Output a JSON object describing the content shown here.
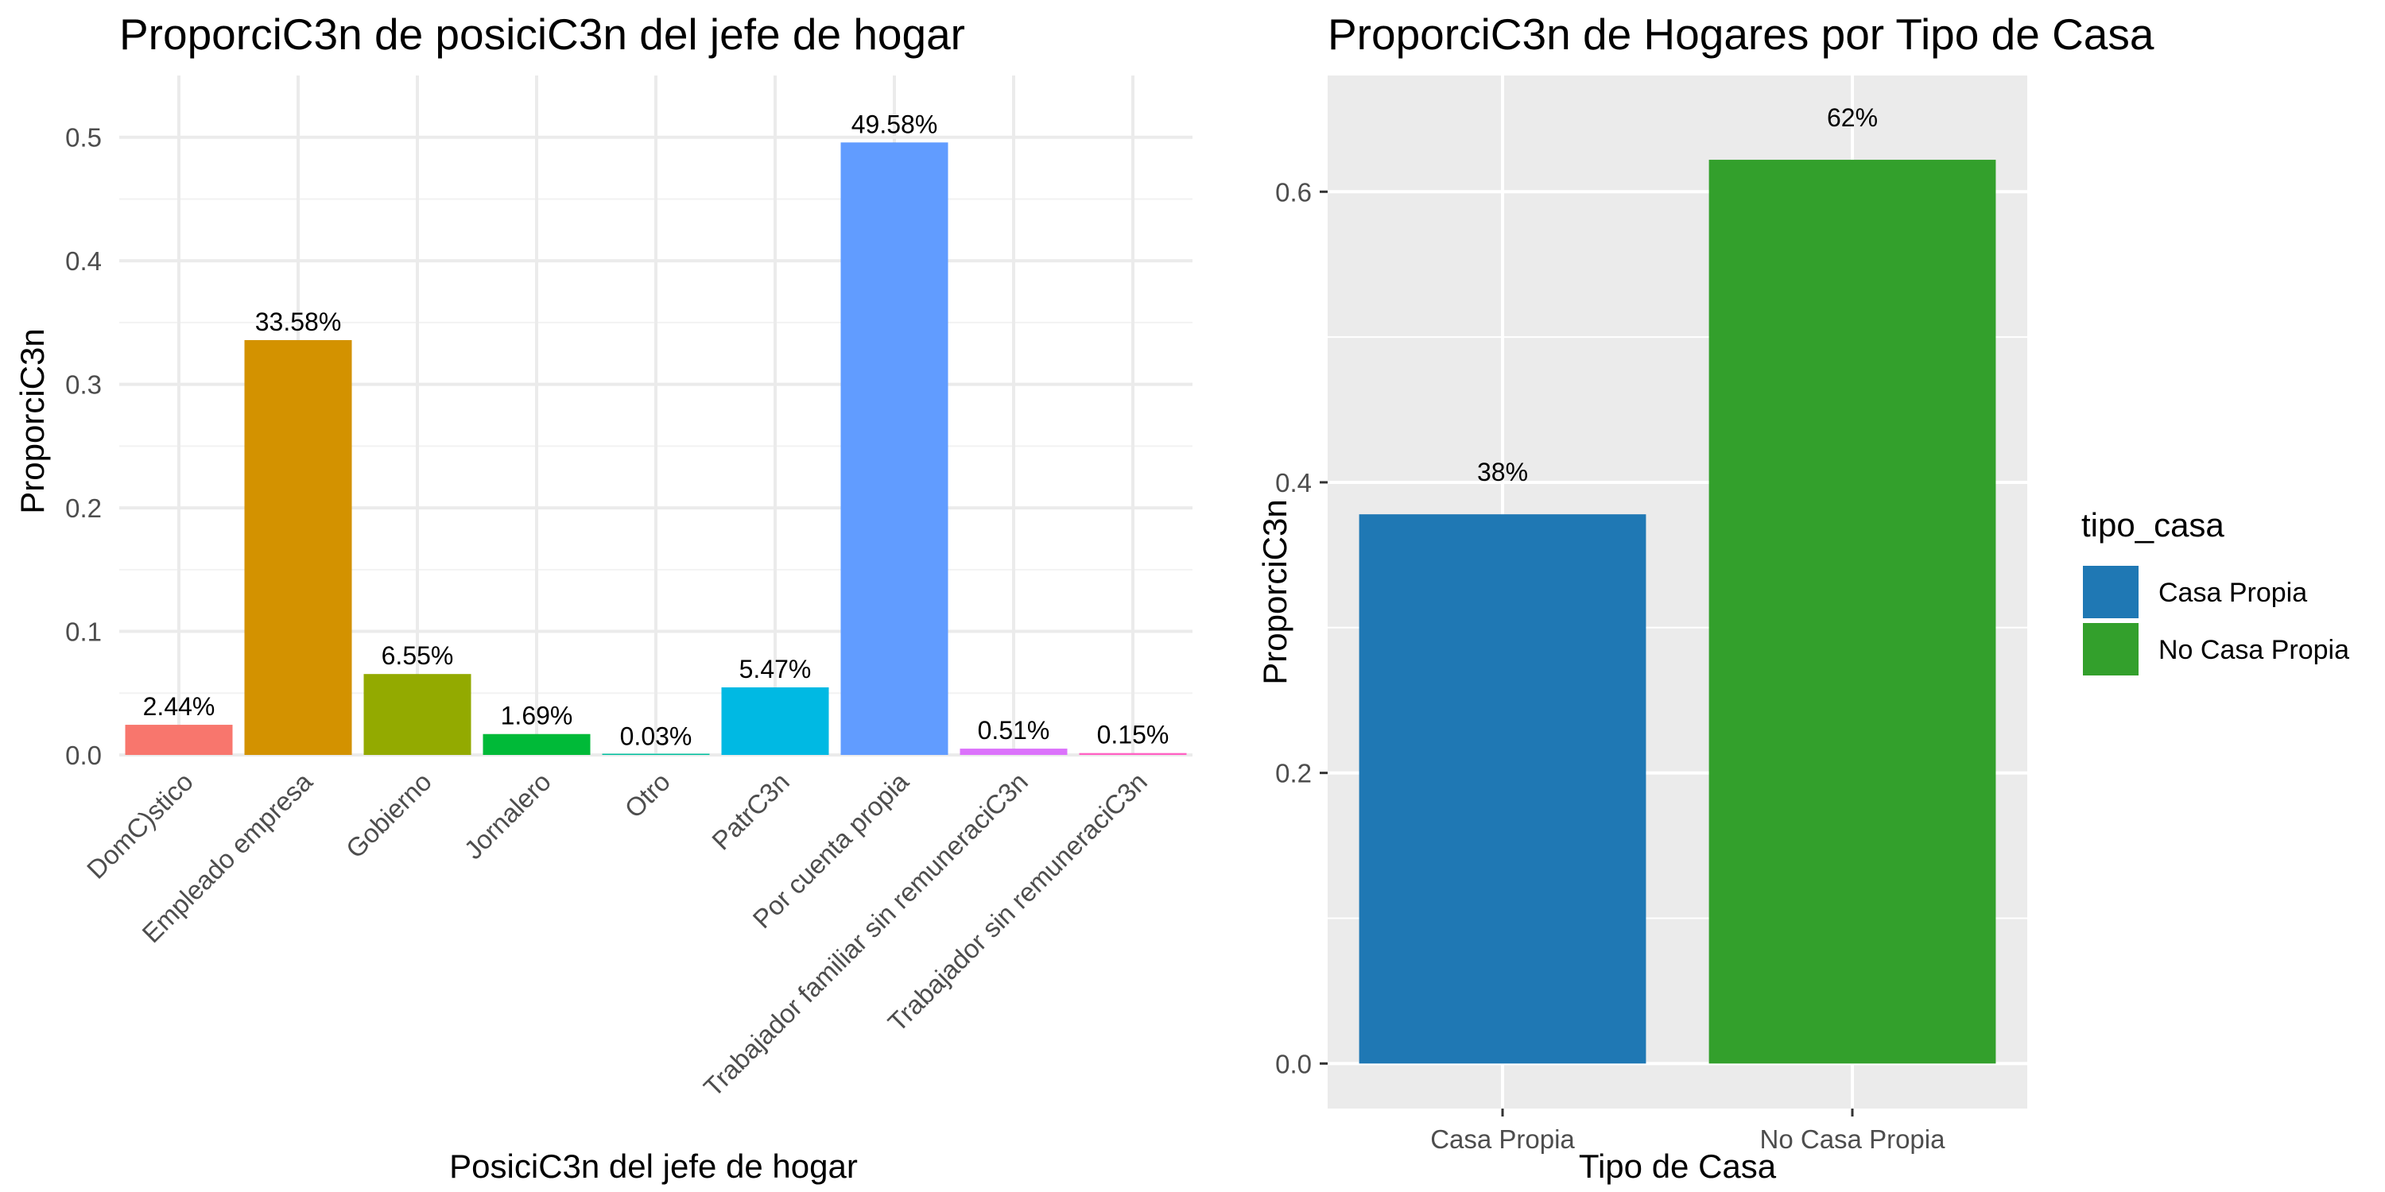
{
  "chart_data": [
    {
      "type": "bar",
      "title": "ProporciC3n de posiciC3n del jefe de hogar",
      "xlabel": "PosiciC3n del jefe de hogar",
      "ylabel": "ProporciC3n",
      "ylim": [
        0,
        0.55
      ],
      "yticks": [
        "0.0",
        "0.1",
        "0.2",
        "0.3",
        "0.4",
        "0.5"
      ],
      "ytick_values": [
        0,
        0.1,
        0.2,
        0.3,
        0.4,
        0.5
      ],
      "grid": true,
      "theme": "minimal",
      "categories": [
        "DomC)stico",
        "Empleado empresa",
        "Gobierno",
        "Jornalero",
        "Otro",
        "PatrC3n",
        "Por cuenta propia",
        "Trabajador familiar sin remuneraciC3n",
        "Trabajador sin remuneraciC3n"
      ],
      "values": [
        0.0244,
        0.3358,
        0.0655,
        0.0169,
        0.0003,
        0.0547,
        0.4958,
        0.0051,
        0.0015
      ],
      "labels": [
        "2.44%",
        "33.58%",
        "6.55%",
        "1.69%",
        "0.03%",
        "5.47%",
        "49.58%",
        "0.51%",
        "0.15%"
      ],
      "colors": [
        "#F8766D",
        "#D39200",
        "#93AA00",
        "#00BA38",
        "#00C19F",
        "#00B9E3",
        "#619CFF",
        "#DB72FB",
        "#FF61C3"
      ]
    },
    {
      "type": "bar",
      "title": "ProporciC3n de Hogares por Tipo de Casa",
      "xlabel": "Tipo de Casa",
      "ylabel": "ProporciC3n",
      "ylim": [
        0,
        0.68
      ],
      "yticks": [
        "0.0",
        "0.2",
        "0.4",
        "0.6"
      ],
      "ytick_values": [
        0,
        0.2,
        0.4,
        0.6
      ],
      "grid": true,
      "theme": "gray",
      "categories": [
        "Casa Propia",
        "No Casa Propia"
      ],
      "values": [
        0.378,
        0.622
      ],
      "labels": [
        "38%",
        "62%"
      ],
      "colors": [
        "#1F78B4",
        "#33A02C"
      ],
      "legend": {
        "title": "tipo_casa",
        "position": "right",
        "entries": [
          "Casa Propia",
          "No Casa Propia"
        ]
      }
    }
  ]
}
